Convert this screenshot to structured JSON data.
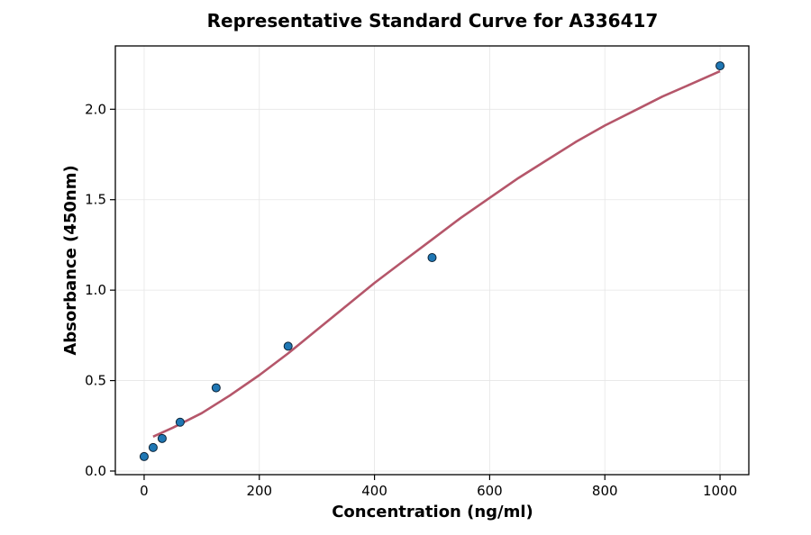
{
  "chart_data": {
    "type": "scatter",
    "title": "Representative Standard Curve for A336417",
    "xlabel": "Concentration (ng/ml)",
    "ylabel": "Absorbance (450nm)",
    "xlim": [
      -50,
      1050
    ],
    "ylim": [
      -0.02,
      2.35
    ],
    "xticks": [
      0,
      200,
      400,
      600,
      800,
      1000
    ],
    "xtick_labels": [
      "0",
      "200",
      "400",
      "600",
      "800",
      "1000"
    ],
    "yticks": [
      0.0,
      0.5,
      1.0,
      1.5,
      2.0
    ],
    "ytick_labels": [
      "0.0",
      "0.5",
      "1.0",
      "1.5",
      "2.0"
    ],
    "grid": true,
    "series": [
      {
        "kind": "points",
        "x": [
          0,
          15.6,
          31.25,
          62.5,
          125,
          250,
          500,
          1000
        ],
        "y": [
          0.08,
          0.13,
          0.18,
          0.27,
          0.46,
          0.69,
          1.18,
          2.24
        ],
        "color": "#1f77b4"
      },
      {
        "kind": "fit-curve",
        "x": [
          15.6,
          50,
          100,
          150,
          200,
          250,
          300,
          350,
          400,
          450,
          500,
          550,
          600,
          650,
          700,
          750,
          800,
          850,
          900,
          950,
          1000
        ],
        "y": [
          0.19,
          0.24,
          0.32,
          0.42,
          0.53,
          0.65,
          0.78,
          0.91,
          1.04,
          1.16,
          1.28,
          1.4,
          1.51,
          1.62,
          1.72,
          1.82,
          1.91,
          1.99,
          2.07,
          2.14,
          2.21
        ],
        "color": "#b5566a"
      }
    ]
  }
}
